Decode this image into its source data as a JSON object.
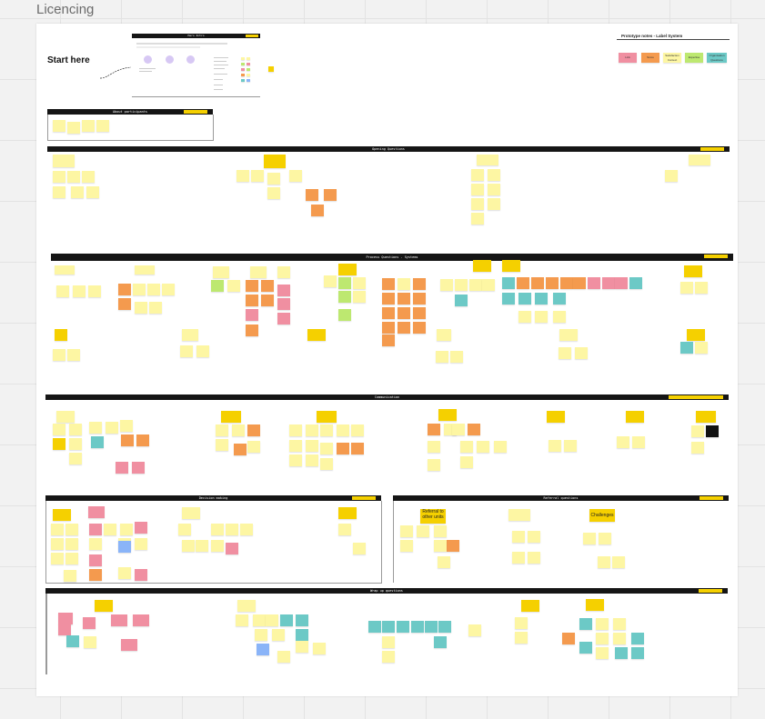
{
  "board": {
    "title": "Licencing"
  },
  "start": {
    "label": "Start here"
  },
  "mini_intro": {
    "title": "Hero Intro"
  },
  "prototype": {
    "title": "Prototype notes - Label System",
    "legend": [
      {
        "label": "Link",
        "color": "#f08fa1"
      },
      {
        "label": "Score",
        "color": "#f49a4e"
      },
      {
        "label": "Satisfaction Context",
        "color": "#fdf6a3"
      },
      {
        "label": "Expertise",
        "color": "#bde870"
      },
      {
        "label": "Organisation Questions",
        "color": "#6cc9c6"
      }
    ]
  },
  "sections": {
    "about": "About participants",
    "opening": "Opening Questions",
    "process": "Process Questions - Systems",
    "communication": "Communication",
    "decision": "Decision making",
    "referral": "Referral questions",
    "wrap": "Wrap up questions"
  },
  "callouts": {
    "referral_units": "Referral to other units",
    "challenges": "Challenges"
  }
}
